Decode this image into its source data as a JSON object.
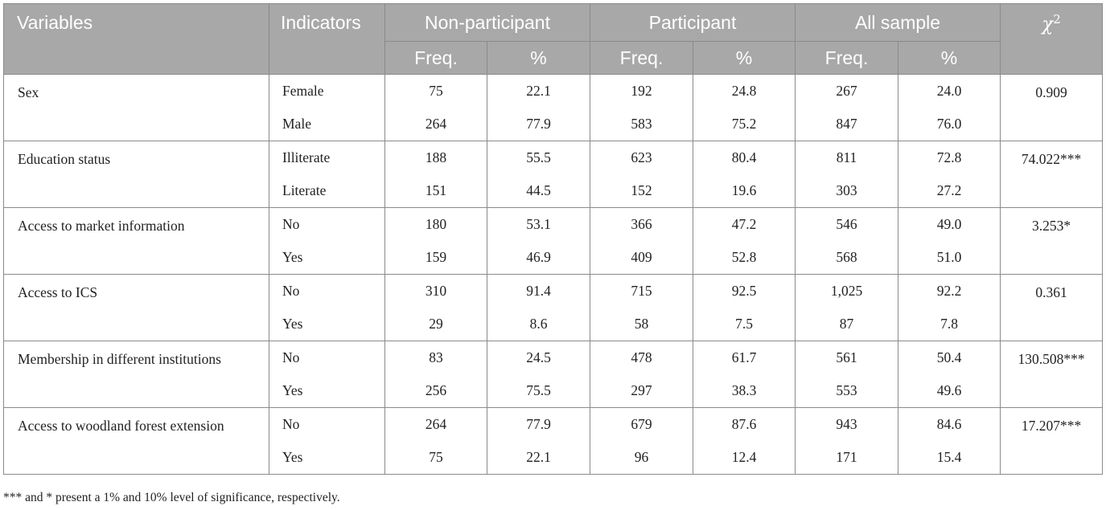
{
  "headers": {
    "variables": "Variables",
    "indicators": "Indicators",
    "groups": [
      "Non-participant",
      "Participant",
      "All sample"
    ],
    "sub": [
      "Freq.",
      "%"
    ],
    "chi_symbol": "χ",
    "chi_sup": "2"
  },
  "rows": [
    {
      "variable": "Sex",
      "chi": "0.909",
      "lines": [
        {
          "indicator": "Female",
          "values": [
            "75",
            "22.1",
            "192",
            "24.8",
            "267",
            "24.0"
          ]
        },
        {
          "indicator": "Male",
          "values": [
            "264",
            "77.9",
            "583",
            "75.2",
            "847",
            "76.0"
          ]
        }
      ]
    },
    {
      "variable": "Education status",
      "chi": "74.022***",
      "lines": [
        {
          "indicator": "Illiterate",
          "values": [
            "188",
            "55.5",
            "623",
            "80.4",
            "811",
            "72.8"
          ]
        },
        {
          "indicator": "Literate",
          "values": [
            "151",
            "44.5",
            "152",
            "19.6",
            "303",
            "27.2"
          ]
        }
      ]
    },
    {
      "variable": "Access to market information",
      "chi": "3.253*",
      "lines": [
        {
          "indicator": "No",
          "values": [
            "180",
            "53.1",
            "366",
            "47.2",
            "546",
            "49.0"
          ]
        },
        {
          "indicator": "Yes",
          "values": [
            "159",
            "46.9",
            "409",
            "52.8",
            "568",
            "51.0"
          ]
        }
      ]
    },
    {
      "variable": "Access to ICS",
      "chi": "0.361",
      "lines": [
        {
          "indicator": "No",
          "values": [
            "310",
            "91.4",
            "715",
            "92.5",
            "1,025",
            "92.2"
          ]
        },
        {
          "indicator": "Yes",
          "values": [
            "29",
            "8.6",
            "58",
            "7.5",
            "87",
            "7.8"
          ]
        }
      ]
    },
    {
      "variable": "Membership in different institutions",
      "chi": "130.508***",
      "lines": [
        {
          "indicator": "No",
          "values": [
            "83",
            "24.5",
            "478",
            "61.7",
            "561",
            "50.4"
          ]
        },
        {
          "indicator": "Yes",
          "values": [
            "256",
            "75.5",
            "297",
            "38.3",
            "553",
            "49.6"
          ]
        }
      ]
    },
    {
      "variable": "Access to woodland forest extension",
      "chi": "17.207***",
      "lines": [
        {
          "indicator": "No",
          "values": [
            "264",
            "77.9",
            "679",
            "87.6",
            "943",
            "84.6"
          ]
        },
        {
          "indicator": "Yes",
          "values": [
            "75",
            "22.1",
            "96",
            "12.4",
            "171",
            "15.4"
          ]
        }
      ]
    }
  ],
  "footnote": "*** and * present a 1% and 10% level of significance, respectively."
}
